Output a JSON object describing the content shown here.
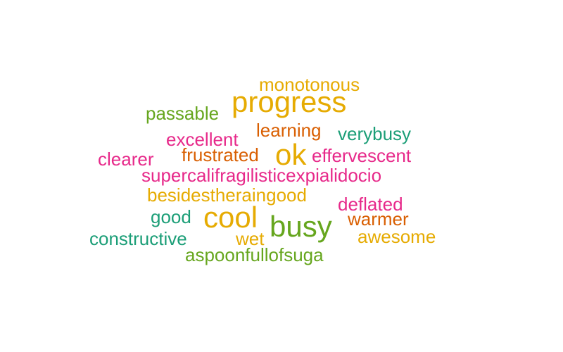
{
  "colors": {
    "gold": "#E6AB02",
    "green": "#66A61E",
    "orange": "#D95F02",
    "teal": "#1B9E77",
    "pink": "#E7298A"
  },
  "words": [
    {
      "text": "monotonous",
      "color": "#E6AB02"
    },
    {
      "text": "progress",
      "color": "#E6AB02"
    },
    {
      "text": "passable",
      "color": "#66A61E"
    },
    {
      "text": "learning",
      "color": "#D95F02"
    },
    {
      "text": "verybusy",
      "color": "#1B9E77"
    },
    {
      "text": "excellent",
      "color": "#E7298A"
    },
    {
      "text": "ok",
      "color": "#E6AB02"
    },
    {
      "text": "frustrated",
      "color": "#D95F02"
    },
    {
      "text": "effervescent",
      "color": "#E7298A"
    },
    {
      "text": "clearer",
      "color": "#E7298A"
    },
    {
      "text": "supercalifragilisticexpialidocio",
      "color": "#E7298A"
    },
    {
      "text": "besidestheraingood",
      "color": "#E6AB02"
    },
    {
      "text": "deflated",
      "color": "#E7298A"
    },
    {
      "text": "good",
      "color": "#1B9E77"
    },
    {
      "text": "cool",
      "color": "#E6AB02"
    },
    {
      "text": "busy",
      "color": "#66A61E"
    },
    {
      "text": "warmer",
      "color": "#D95F02"
    },
    {
      "text": "constructive",
      "color": "#1B9E77"
    },
    {
      "text": "wet",
      "color": "#E6AB02"
    },
    {
      "text": "awesome",
      "color": "#E6AB02"
    },
    {
      "text": "aspoonfullofsuga",
      "color": "#66A61E"
    }
  ]
}
